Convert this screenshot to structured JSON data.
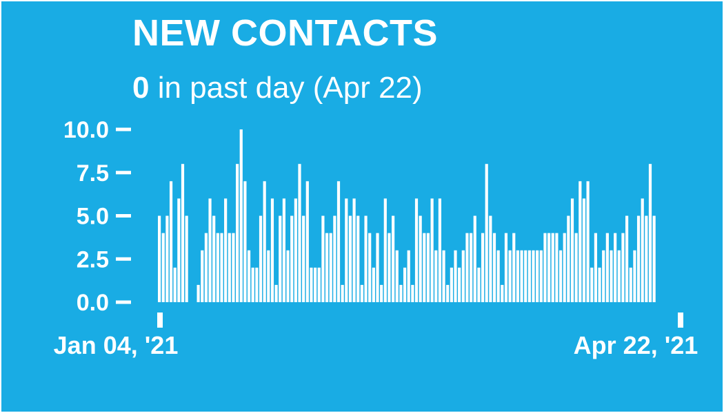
{
  "header": {
    "title": "NEW CONTACTS",
    "subtitle_value": "0",
    "subtitle_text": " in past day (Apr 22)"
  },
  "colors": {
    "background": "#19ace4",
    "bars": "#ffffff",
    "text": "#ffffff"
  },
  "chart_data": {
    "type": "bar",
    "title": "NEW CONTACTS",
    "subtitle": "0 in past day (Apr 22)",
    "x_start_label": "Jan 04, '21",
    "x_end_label": "Apr 22, '21",
    "yticks": [
      "0.0",
      "2.5",
      "5.0",
      "7.5",
      "10.0"
    ],
    "ylim": [
      0,
      10
    ],
    "grid": false,
    "values": [
      5,
      4,
      5,
      7,
      2,
      6,
      8,
      5,
      0,
      0,
      1,
      3,
      4,
      6,
      5,
      4,
      4,
      6,
      4,
      4,
      8,
      10,
      7,
      3,
      2,
      2,
      5,
      7,
      3,
      6,
      1,
      5,
      6,
      3,
      5,
      6,
      8,
      5,
      7,
      2,
      2,
      2,
      5,
      4,
      4,
      5,
      7,
      1,
      6,
      5,
      6,
      5,
      1,
      5,
      4,
      2,
      4,
      1,
      6,
      4,
      5,
      3,
      1,
      2,
      3,
      1,
      6,
      5,
      4,
      4,
      6,
      3,
      6,
      3,
      1,
      2,
      3,
      2,
      3,
      4,
      4,
      5,
      2,
      4,
      8,
      5,
      4,
      3,
      1,
      4,
      3,
      4,
      3,
      3,
      3,
      3,
      3,
      3,
      3,
      4,
      4,
      4,
      4,
      3,
      4,
      5,
      6,
      4,
      7,
      6,
      7,
      2,
      4,
      2,
      3,
      4,
      3,
      4,
      3,
      4,
      5,
      2,
      3,
      5,
      6,
      5,
      8,
      5,
      0,
      0,
      0,
      0,
      0
    ]
  }
}
